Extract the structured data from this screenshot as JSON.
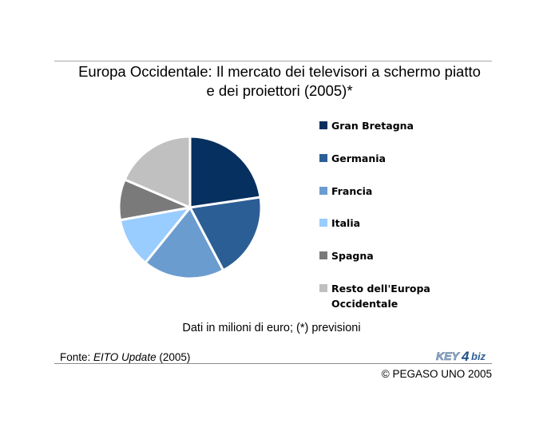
{
  "chart_data": {
    "type": "pie",
    "title": "Europa Occidentale: Il mercato dei televisori a schermo piatto e dei proiettori (2005)*",
    "title_lines": [
      "Europa Occidentale: Il mercato dei televisori a schermo piatto",
      "e dei proiettori (2005)*"
    ],
    "categories": [
      "Gran Bretagna",
      "Germania",
      "Francia",
      "Italia",
      "Spagna",
      "Resto dell'Europa Occidentale"
    ],
    "values": [
      22,
      19,
      18,
      11,
      9,
      18
    ],
    "unit_note": "Dati in milioni di euro; (*) previsioni",
    "legend_position": "right",
    "colors": [
      "#06305f",
      "#2b5e94",
      "#6b9ccf",
      "#99ccff",
      "#7a7a7a",
      "#c0c0c0"
    ],
    "legend_labels": [
      "Gran Bretagna",
      "Germania",
      "Francia",
      "Italia",
      "Spagna",
      "Resto dell'Europa\nOccidentale"
    ]
  },
  "footer": {
    "source_prefix": "Fonte: ",
    "source_name": "EITO Update",
    "source_suffix": " (2005)",
    "logo_text_left": "KEY",
    "logo_text_digit": "4",
    "logo_text_right": "biz",
    "copyright": "© PEGASO UNO 2005"
  }
}
